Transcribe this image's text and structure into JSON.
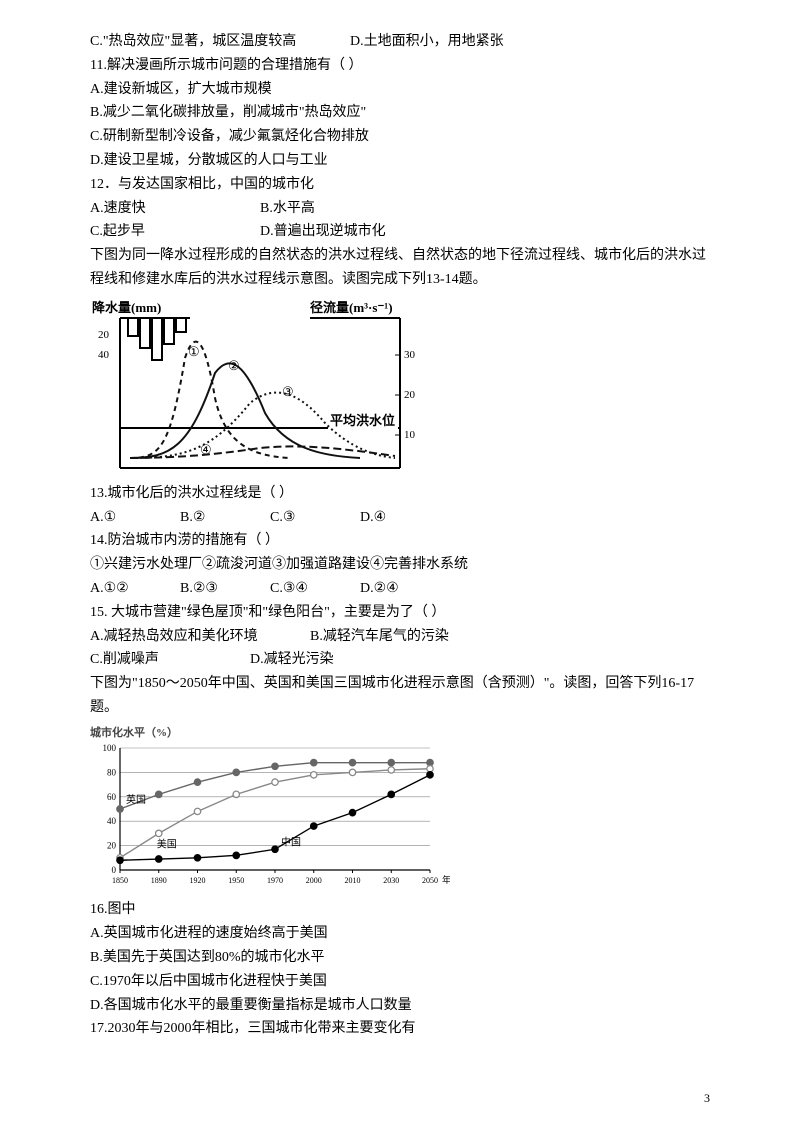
{
  "q10_opts": {
    "c": "C.\"热岛效应\"显著，城区温度较高",
    "d": "D.土地面积小，用地紧张"
  },
  "q11": {
    "stem": "11.解决漫画所示城市问题的合理措施有（ ）",
    "a": "A.建设新城区，扩大城市规模",
    "b": "B.减少二氧化碳排放量，削减城市\"热岛效应\"",
    "c": "C.研制新型制冷设备，减少氟氯烃化合物排放",
    "d": "D.建设卫星城，分散城区的人口与工业"
  },
  "q12": {
    "stem": "12．与发达国家相比，中国的城市化",
    "a": "A.速度快",
    "b": "B.水平高",
    "c": "C.起步早",
    "d": "D.普遍出现逆城市化"
  },
  "intro1314": "下图为同一降水过程形成的自然状态的洪水过程线、自然状态的地下径流过程线、城市化后的洪水过程线和修建水库后的洪水过程线示意图。读图完成下列13-14题。",
  "chart1": {
    "left_label": "降水量(mm)",
    "right_label": "径流量(m³·s⁻¹)",
    "avg_label": "平均洪水位",
    "left_ticks": [
      "20",
      "40"
    ],
    "right_ticks": [
      "10",
      "20",
      "30"
    ],
    "curve_labels": [
      "①",
      "②",
      "③",
      "④"
    ],
    "colors": {
      "axis": "#000000",
      "curve": "#111111",
      "avg_line": "#000000"
    }
  },
  "q13": {
    "stem": "13.城市化后的洪水过程线是（ ）",
    "a": "A.①",
    "b": "B.②",
    "c": "C.③",
    "d": "D.④"
  },
  "q14": {
    "stem": "14.防治城市内涝的措施有（ ）",
    "choices_line": "①兴建污水处理厂②疏浚河道③加强道路建设④完善排水系统",
    "a": "A.①②",
    "b": "B.②③",
    "c": "C.③④",
    "d": "D.②④"
  },
  "q15": {
    "stem": "15. 大城市营建\"绿色屋顶\"和\"绿色阳台\"，主要是为了（ ）",
    "a": "A.减轻热岛效应和美化环境",
    "b": "B.减轻汽车尾气的污染",
    "c": "C.削减噪声",
    "d": "D.减轻光污染"
  },
  "intro1617": "下图为\"1850～2050年中国、英国和美国三国城市化进程示意图（含预测）\"。读图，回答下列16-17题。",
  "chart2": {
    "title": "城市化水平（%）",
    "y_ticks": [
      "0",
      "20",
      "40",
      "60",
      "80",
      "100"
    ],
    "x_ticks": [
      "1850",
      "1890",
      "1920",
      "1950",
      "1970",
      "2000",
      "2010",
      "2030",
      "2050"
    ],
    "x_axis_label": "年",
    "series": {
      "uk": {
        "label": "英国",
        "color": "#666666",
        "values": [
          50,
          62,
          72,
          80,
          85,
          88,
          88,
          88,
          88
        ]
      },
      "us": {
        "label": "美国",
        "color": "#888888",
        "values": [
          10,
          30,
          48,
          62,
          72,
          78,
          80,
          82,
          83
        ]
      },
      "china": {
        "label": "中国",
        "color": "#000000",
        "values": [
          8,
          9,
          10,
          12,
          17,
          36,
          47,
          62,
          78
        ]
      }
    },
    "bg": "#ffffff",
    "grid": "#888888",
    "axis": "#000000"
  },
  "q16": {
    "stem": "16.图中",
    "a": "A.英国城市化进程的速度始终高于美国",
    "b": "B.美国先于英国达到80%的城市化水平",
    "c": "C.1970年以后中国城市化进程快于美国",
    "d": "D.各国城市化水平的最重要衡量指标是城市人口数量"
  },
  "q17": {
    "stem": "17.2030年与2000年相比，三国城市化带来主要变化有"
  },
  "page": "3"
}
